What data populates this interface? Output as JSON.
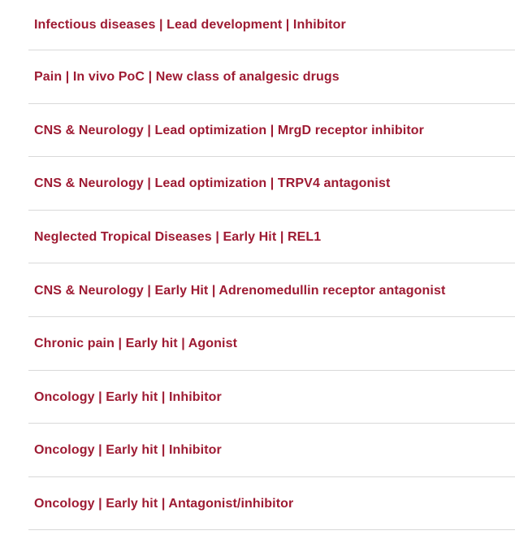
{
  "colors": {
    "link_text": "#9e1b33",
    "divider": "#d9d9d9",
    "background": "#ffffff"
  },
  "list": {
    "items": [
      {
        "label": "Infectious diseases | Lead development | Inhibitor"
      },
      {
        "label": "Pain | In vivo PoC | New class of analgesic drugs"
      },
      {
        "label": "CNS & Neurology | Lead optimization | MrgD receptor inhibitor"
      },
      {
        "label": "CNS & Neurology | Lead optimization | TRPV4 antagonist"
      },
      {
        "label": "Neglected Tropical Diseases | Early Hit | REL1"
      },
      {
        "label": "CNS & Neurology | Early Hit | Adrenomedullin receptor antagonist"
      },
      {
        "label": "Chronic pain | Early hit | Agonist"
      },
      {
        "label": "Oncology | Early hit | Inhibitor"
      },
      {
        "label": "Oncology | Early hit | Inhibitor"
      },
      {
        "label": "Oncology | Early hit | Antagonist/inhibitor"
      }
    ]
  }
}
